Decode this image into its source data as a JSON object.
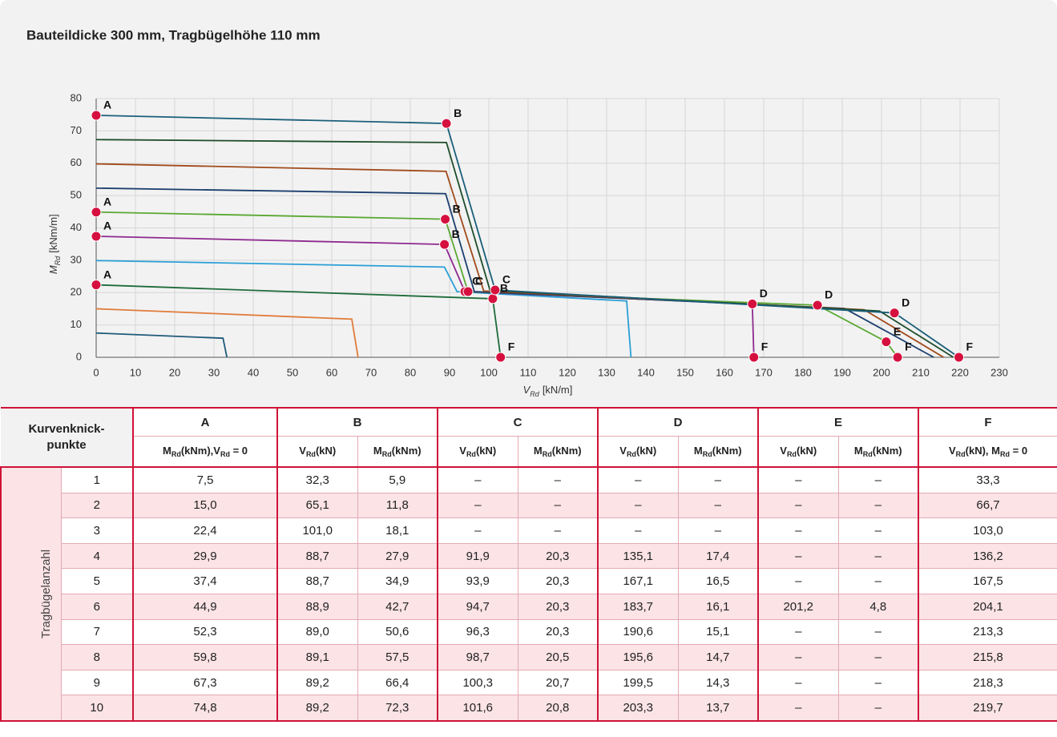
{
  "chart_data": {
    "type": "line",
    "title": "Bauteildicke 300 mm, Tragbügelhöhe 110 mm",
    "x_label": [
      "V",
      "Rd",
      "[kN/m]"
    ],
    "y_label": [
      "M",
      "Rd",
      "[kNm/m]"
    ],
    "xlim": [
      0,
      230
    ],
    "ylim": [
      0,
      80
    ],
    "xticks": [
      0,
      10,
      20,
      30,
      40,
      50,
      60,
      70,
      80,
      90,
      100,
      110,
      120,
      130,
      140,
      150,
      160,
      170,
      180,
      190,
      200,
      210,
      220,
      230
    ],
    "yticks": [
      0,
      10,
      20,
      30,
      40,
      50,
      60,
      70,
      80
    ],
    "grid": true,
    "marker_color": "#d5103f",
    "series": [
      {
        "color": "#1f5a7a",
        "x": [
          0,
          32.3,
          33.3
        ],
        "values": [
          7.5,
          5.9,
          0
        ]
      },
      {
        "color": "#e07b39",
        "x": [
          0,
          65.1,
          66.7
        ],
        "values": [
          15.0,
          11.8,
          0
        ]
      },
      {
        "color": "#1e6b3a",
        "x": [
          0,
          101.0,
          103.0
        ],
        "values": [
          22.4,
          18.1,
          0
        ],
        "point_labels": [
          "A",
          "B",
          "F"
        ]
      },
      {
        "color": "#2a9fd6",
        "x": [
          0,
          88.7,
          91.9,
          135.1,
          136.2
        ],
        "values": [
          29.9,
          27.9,
          20.3,
          17.4,
          0
        ]
      },
      {
        "color": "#8e2a8e",
        "x": [
          0,
          88.7,
          93.9,
          167.1,
          167.5
        ],
        "values": [
          37.4,
          34.9,
          20.3,
          16.5,
          0
        ],
        "point_labels": [
          "A",
          "B",
          "C",
          "D",
          "F"
        ]
      },
      {
        "color": "#5aa832",
        "x": [
          0,
          88.9,
          94.7,
          183.7,
          201.2,
          204.1
        ],
        "values": [
          44.9,
          42.7,
          20.3,
          16.1,
          4.8,
          0
        ],
        "point_labels": [
          "A",
          "B",
          "C",
          "D",
          "E",
          "F"
        ]
      },
      {
        "color": "#1c3f6e",
        "x": [
          0,
          89.0,
          96.3,
          190.6,
          213.3
        ],
        "values": [
          52.3,
          50.6,
          20.3,
          15.1,
          0
        ]
      },
      {
        "color": "#a04a1a",
        "x": [
          0,
          89.1,
          98.7,
          195.6,
          215.8
        ],
        "values": [
          59.8,
          57.5,
          20.5,
          14.7,
          0
        ]
      },
      {
        "color": "#1e4d2b",
        "x": [
          0,
          89.2,
          100.3,
          199.5,
          218.3
        ],
        "values": [
          67.3,
          66.4,
          20.7,
          14.3,
          0
        ]
      },
      {
        "color": "#1a5f7a",
        "x": [
          0,
          89.2,
          101.6,
          203.3,
          219.7
        ],
        "values": [
          74.8,
          72.3,
          20.8,
          13.7,
          0
        ],
        "point_labels": [
          "A",
          "B",
          "C",
          "D",
          "F"
        ]
      }
    ]
  },
  "table": {
    "header": [
      "Kurvenknick-punkte",
      "A",
      "B",
      "C",
      "D",
      "E",
      "F"
    ],
    "subheader": [
      [
        "M",
        "Rd",
        "(kNm),V",
        "Rd",
        " = 0"
      ],
      [
        "V",
        "Rd",
        "(kN)"
      ],
      [
        "M",
        "Rd",
        "(kNm)"
      ],
      [
        "V",
        "Rd",
        "(kN)"
      ],
      [
        "M",
        "Rd",
        "(kNm)"
      ],
      [
        "V",
        "Rd",
        "(kN)"
      ],
      [
        "M",
        "Rd",
        "(kNm)"
      ],
      [
        "V",
        "Rd",
        "(kN)"
      ],
      [
        "M",
        "Rd",
        "(kNm)"
      ],
      [
        "V",
        "Rd",
        "(kN), M",
        "Rd",
        " = 0"
      ]
    ],
    "row_group": "Tragbügelanzahl",
    "rows": [
      [
        "1",
        "7,5",
        "32,3",
        "5,9",
        "–",
        "–",
        "–",
        "–",
        "–",
        "–",
        "33,3"
      ],
      [
        "2",
        "15,0",
        "65,1",
        "11,8",
        "–",
        "–",
        "–",
        "–",
        "–",
        "–",
        "66,7"
      ],
      [
        "3",
        "22,4",
        "101,0",
        "18,1",
        "–",
        "–",
        "–",
        "–",
        "–",
        "–",
        "103,0"
      ],
      [
        "4",
        "29,9",
        "88,7",
        "27,9",
        "91,9",
        "20,3",
        "135,1",
        "17,4",
        "–",
        "–",
        "136,2"
      ],
      [
        "5",
        "37,4",
        "88,7",
        "34,9",
        "93,9",
        "20,3",
        "167,1",
        "16,5",
        "–",
        "–",
        "167,5"
      ],
      [
        "6",
        "44,9",
        "88,9",
        "42,7",
        "94,7",
        "20,3",
        "183,7",
        "16,1",
        "201,2",
        "4,8",
        "204,1"
      ],
      [
        "7",
        "52,3",
        "89,0",
        "50,6",
        "96,3",
        "20,3",
        "190,6",
        "15,1",
        "–",
        "–",
        "213,3"
      ],
      [
        "8",
        "59,8",
        "89,1",
        "57,5",
        "98,7",
        "20,5",
        "195,6",
        "14,7",
        "–",
        "–",
        "215,8"
      ],
      [
        "9",
        "67,3",
        "89,2",
        "66,4",
        "100,3",
        "20,7",
        "199,5",
        "14,3",
        "–",
        "–",
        "218,3"
      ],
      [
        "10",
        "74,8",
        "89,2",
        "72,3",
        "101,6",
        "20,8",
        "203,3",
        "13,7",
        "–",
        "–",
        "219,7"
      ]
    ]
  }
}
